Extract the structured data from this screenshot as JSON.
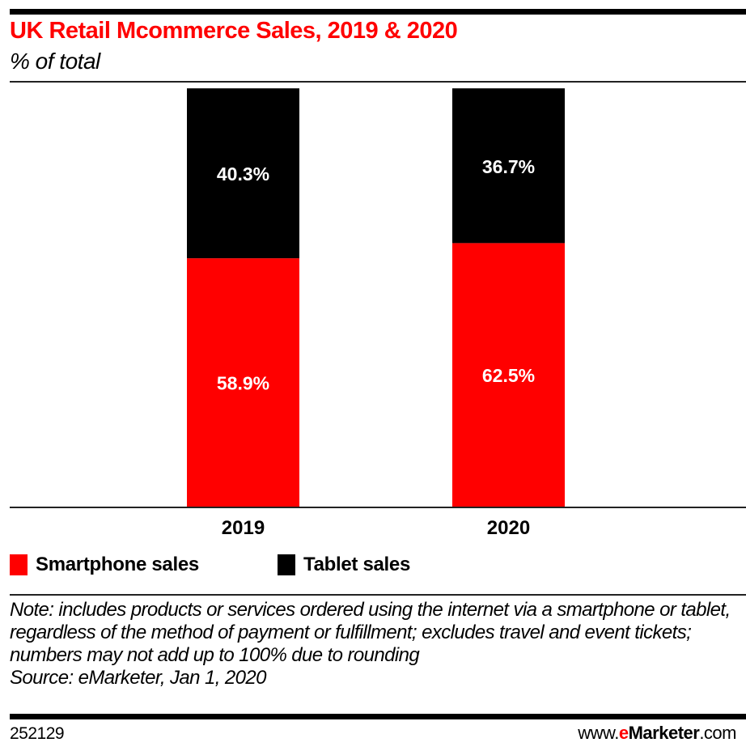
{
  "chart_data": {
    "type": "bar",
    "stacked": true,
    "title": "UK Retail Mcommerce Sales, 2019 & 2020",
    "subtitle": "% of total",
    "xlabel": "",
    "ylabel": "",
    "ylim": [
      0,
      100
    ],
    "grid": false,
    "categories": [
      "2019",
      "2020"
    ],
    "series": [
      {
        "name": "Smartphone sales",
        "color": "#ff0000",
        "values": [
          58.9,
          62.5
        ],
        "labels": [
          "58.9%",
          "62.5%"
        ]
      },
      {
        "name": "Tablet sales",
        "color": "#000000",
        "values": [
          40.3,
          36.7
        ],
        "labels": [
          "40.3%",
          "36.7%"
        ]
      }
    ],
    "legend_position": "bottom-left"
  },
  "footer": {
    "note": "Note: includes products or services ordered using the internet via a smartphone or tablet, regardless of the method of payment or fulfillment; excludes travel and event tickets; numbers may not add up to 100% due to rounding",
    "source": "Source: eMarketer, Jan 1, 2020",
    "chart_id": "252129",
    "brand_prefix": "www.",
    "brand_e": "e",
    "brand_name": "Marketer",
    "brand_suffix": ".com"
  }
}
